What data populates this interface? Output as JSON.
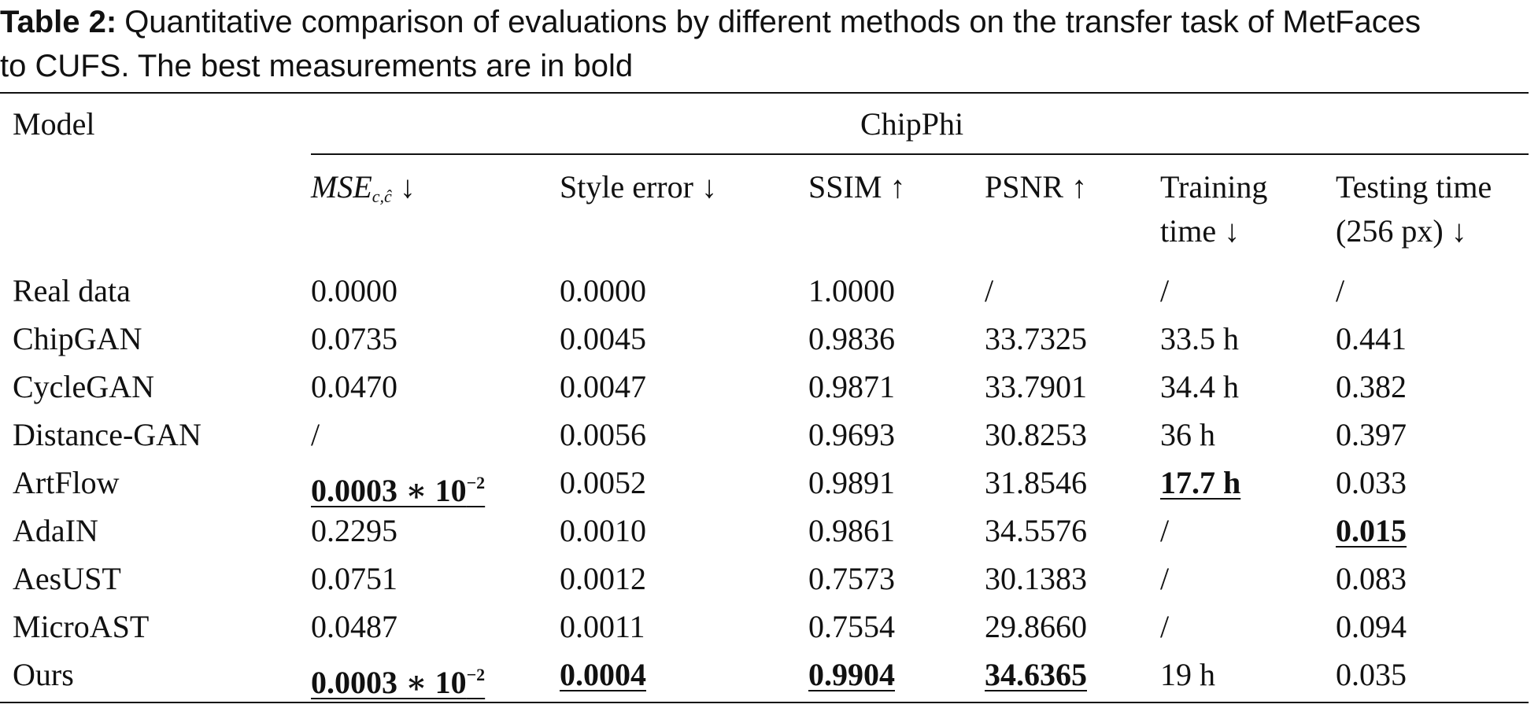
{
  "caption": {
    "label": "Table 2:",
    "line1": "Quantitative comparison of evaluations by different methods on the transfer task of MetFaces",
    "line2": "to CUFS. The best measurements are in bold"
  },
  "header": {
    "model": "Model",
    "group": "ChipPhi",
    "columns": [
      {
        "main": "MSE",
        "sub": "c,ĉ",
        "arrow": "↓"
      },
      {
        "line1": "Style error ↓"
      },
      {
        "line1": "SSIM ↑"
      },
      {
        "line1": "PSNR ↑"
      },
      {
        "line1": "Training",
        "line2": "time ↓"
      },
      {
        "line1": "Testing time",
        "line2": "(256 px) ↓"
      }
    ]
  },
  "rows": [
    {
      "model": "Real data",
      "cells": [
        "0.0000",
        "0.0000",
        "1.0000",
        "/",
        "/",
        "/"
      ]
    },
    {
      "model": "ChipGAN",
      "cells": [
        "0.0735",
        "0.0045",
        "0.9836",
        "33.7325",
        "33.5 h",
        "0.441"
      ]
    },
    {
      "model": "CycleGAN",
      "cells": [
        "0.0470",
        "0.0047",
        "0.9871",
        "33.7901",
        "34.4 h",
        "0.382"
      ]
    },
    {
      "model": "Distance-GAN",
      "cells": [
        "/",
        "0.0056",
        "0.9693",
        "30.8253",
        "36 h",
        "0.397"
      ]
    },
    {
      "model": "ArtFlow",
      "cells": [
        "0.0003 ∗ 10",
        "0.0052",
        "0.9891",
        "31.8546",
        "17.7 h",
        "0.033"
      ]
    },
    {
      "model": "AdaIN",
      "cells": [
        "0.2295",
        "0.0010",
        "0.9861",
        "34.5576",
        "/",
        "0.015"
      ]
    },
    {
      "model": "AesUST",
      "cells": [
        "0.0751",
        "0.0012",
        "0.7573",
        "30.1383",
        "/",
        "0.083"
      ]
    },
    {
      "model": "MicroAST",
      "cells": [
        "0.0487",
        "0.0011",
        "0.7554",
        "29.8660",
        "/",
        "0.094"
      ]
    },
    {
      "model": "Ours",
      "cells": [
        "0.0003 ∗ 10",
        "0.0004",
        "0.9904",
        "34.6365",
        "19 h",
        "0.035"
      ]
    }
  ],
  "exponent": "−2",
  "best": [
    [
      4,
      0
    ],
    [
      4,
      4
    ],
    [
      5,
      5
    ],
    [
      8,
      0
    ],
    [
      8,
      1
    ],
    [
      8,
      2
    ],
    [
      8,
      3
    ]
  ]
}
